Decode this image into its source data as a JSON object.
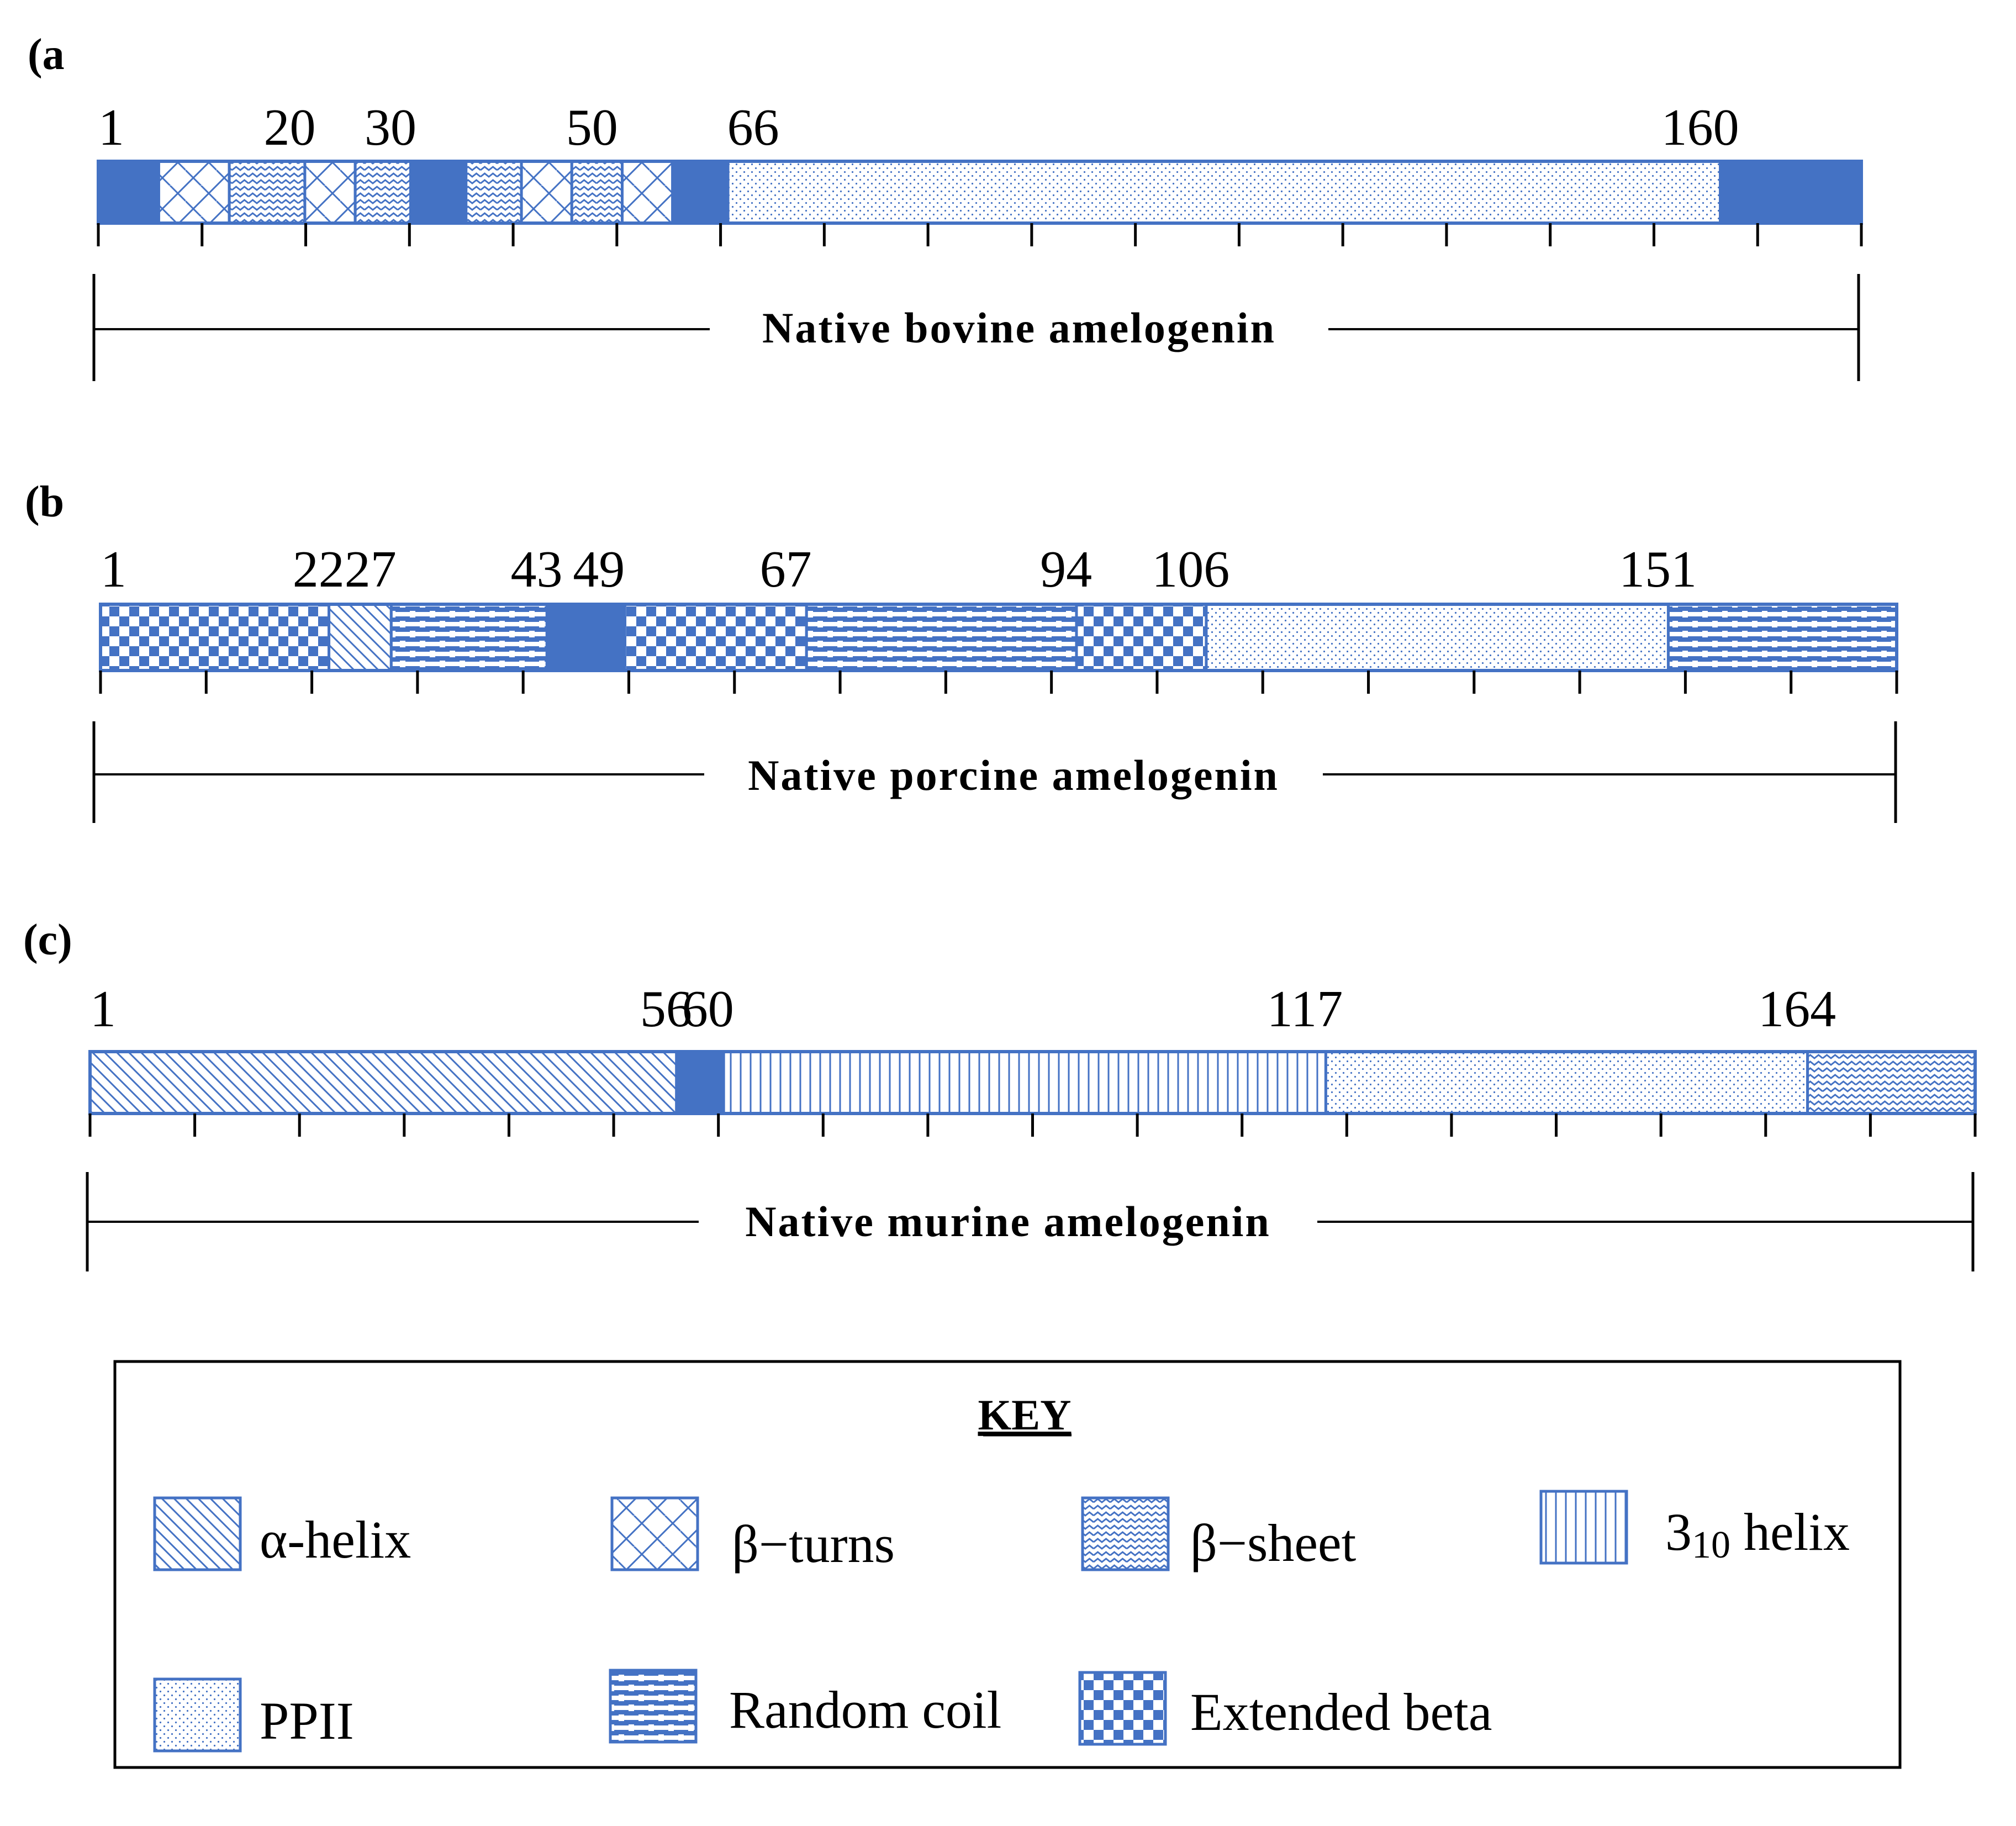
{
  "figure": {
    "colors": {
      "primary": "#4472c4",
      "fill_light": "#ffffff",
      "line": "#000000"
    },
    "panels": [
      {
        "id": "a",
        "label": "(a",
        "title": "Native bovine amelogenin",
        "length": 175,
        "tick_count": 17,
        "numbers": [
          {
            "text": "1",
            "pos": 1
          },
          {
            "text": "20",
            "pos": 20
          },
          {
            "text": "30",
            "pos": 30
          },
          {
            "text": "50",
            "pos": 50
          },
          {
            "text": "66",
            "pos": 66
          },
          {
            "text": "160",
            "pos": 160
          }
        ],
        "segments": [
          {
            "start": 0,
            "end": 6,
            "type": "solid"
          },
          {
            "start": 6,
            "end": 13,
            "type": "beta-turns"
          },
          {
            "start": 13,
            "end": 20.5,
            "type": "beta-sheet"
          },
          {
            "start": 20.5,
            "end": 25.5,
            "type": "beta-turns"
          },
          {
            "start": 25.5,
            "end": 31,
            "type": "beta-sheet"
          },
          {
            "start": 31,
            "end": 36.5,
            "type": "solid"
          },
          {
            "start": 36.5,
            "end": 42,
            "type": "beta-sheet"
          },
          {
            "start": 42,
            "end": 47,
            "type": "beta-turns"
          },
          {
            "start": 47,
            "end": 52,
            "type": "beta-sheet"
          },
          {
            "start": 52,
            "end": 57,
            "type": "beta-turns"
          },
          {
            "start": 57,
            "end": 62.5,
            "type": "solid"
          },
          {
            "start": 62.5,
            "end": 161,
            "type": "ppii"
          },
          {
            "start": 161,
            "end": 175,
            "type": "solid"
          }
        ]
      },
      {
        "id": "b",
        "label": "(b",
        "title": "Native porcine amelogenin",
        "length": 173,
        "tick_count": 17,
        "numbers": [
          {
            "text": "1",
            "pos": 1
          },
          {
            "text": "22",
            "pos": 22
          },
          {
            "text": "27",
            "pos": 27
          },
          {
            "text": "43",
            "pos": 43
          },
          {
            "text": "49",
            "pos": 49
          },
          {
            "text": "67",
            "pos": 67
          },
          {
            "text": "94",
            "pos": 94
          },
          {
            "text": "106",
            "pos": 106
          },
          {
            "text": "151",
            "pos": 151
          }
        ],
        "segments": [
          {
            "start": 0,
            "end": 22,
            "type": "extended-beta"
          },
          {
            "start": 22,
            "end": 28,
            "type": "alpha-helix"
          },
          {
            "start": 28,
            "end": 43,
            "type": "random-coil"
          },
          {
            "start": 43,
            "end": 50.5,
            "type": "solid"
          },
          {
            "start": 50.5,
            "end": 68,
            "type": "extended-beta"
          },
          {
            "start": 68,
            "end": 94,
            "type": "random-coil"
          },
          {
            "start": 94,
            "end": 106.5,
            "type": "extended-beta"
          },
          {
            "start": 106.5,
            "end": 151,
            "type": "ppii"
          },
          {
            "start": 151,
            "end": 173,
            "type": "random-coil"
          }
        ]
      },
      {
        "id": "c",
        "label": "(c)",
        "title": "Native murine amelogenin",
        "length": 180,
        "tick_count": 18,
        "numbers": [
          {
            "text": "1",
            "pos": 1
          },
          {
            "text": "56",
            "pos": 56
          },
          {
            "text": "60",
            "pos": 60
          },
          {
            "text": "117",
            "pos": 117
          },
          {
            "text": "164",
            "pos": 164
          }
        ],
        "segments": [
          {
            "start": 0,
            "end": 56,
            "type": "alpha-helix"
          },
          {
            "start": 56,
            "end": 60.5,
            "type": "solid"
          },
          {
            "start": 60.5,
            "end": 118,
            "type": "three-ten-helix"
          },
          {
            "start": 118,
            "end": 164,
            "type": "ppii"
          },
          {
            "start": 164,
            "end": 180,
            "type": "beta-sheet"
          }
        ]
      }
    ],
    "key": {
      "title": "KEY",
      "items": [
        {
          "pattern": "alpha-helix",
          "label": "α-helix"
        },
        {
          "pattern": "beta-turns",
          "label": "β−turns"
        },
        {
          "pattern": "beta-sheet",
          "label": "β−sheet"
        },
        {
          "pattern": "three-ten-helix",
          "label_main": "3",
          "label_sub": "10",
          "label_tail": " helix"
        },
        {
          "pattern": "ppii",
          "label": "PPII"
        },
        {
          "pattern": "random-coil",
          "label": "Random coil"
        },
        {
          "pattern": "extended-beta",
          "label": "Extended beta"
        }
      ]
    }
  }
}
